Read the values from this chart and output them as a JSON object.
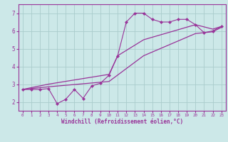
{
  "background_color": "#cce8e8",
  "grid_color": "#aacccc",
  "line_color": "#993399",
  "xlabel": "Windchill (Refroidissement éolien,°C)",
  "xlim": [
    -0.5,
    23.5
  ],
  "ylim": [
    1.5,
    7.5
  ],
  "yticks": [
    2,
    3,
    4,
    5,
    6,
    7
  ],
  "xticks": [
    0,
    1,
    2,
    3,
    4,
    5,
    6,
    7,
    8,
    9,
    10,
    11,
    12,
    13,
    14,
    15,
    16,
    17,
    18,
    19,
    20,
    21,
    22,
    23
  ],
  "line1_x": [
    0,
    1,
    2,
    3,
    4,
    5,
    6,
    7,
    8,
    9,
    10,
    11,
    12,
    13,
    14,
    15,
    16,
    17,
    18,
    19,
    20,
    21,
    22,
    23
  ],
  "line1_y": [
    2.7,
    2.7,
    2.7,
    2.75,
    1.9,
    2.15,
    2.7,
    2.2,
    2.9,
    3.05,
    3.5,
    4.6,
    6.5,
    7.0,
    7.0,
    6.65,
    6.5,
    6.5,
    6.65,
    6.65,
    6.35,
    5.9,
    6.0,
    6.25
  ],
  "line2_x": [
    0,
    3,
    10,
    11,
    14,
    20,
    22,
    23
  ],
  "line2_y": [
    2.7,
    3.0,
    3.55,
    4.6,
    5.5,
    6.35,
    6.1,
    6.25
  ],
  "line3_x": [
    0,
    3,
    10,
    14,
    20,
    22,
    23
  ],
  "line3_y": [
    2.7,
    2.85,
    3.15,
    4.6,
    5.85,
    5.95,
    6.2
  ]
}
